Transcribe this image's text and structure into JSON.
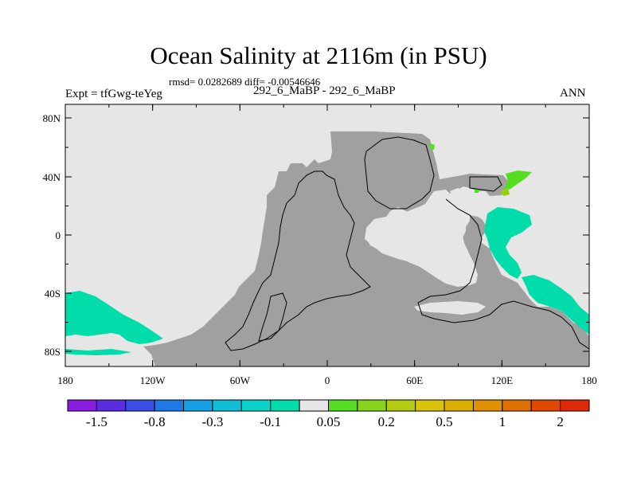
{
  "title": "Ocean Salinity at 2116m (in PSU)",
  "stats": "rmsd= 0.0282689 diff= -0.00546646",
  "expt_label": "Expt = tfGwg-teYeg",
  "runs_label": "292_6_MaBP - 292_6_MaBP",
  "period_label": "ANN",
  "colors": {
    "land": "#a0a0a0",
    "near_zero": "#e6e6e6",
    "teal": "#00dcaa",
    "green": "#55dd22",
    "yellowgreen": "#99cc11",
    "coast": "#000000"
  },
  "map": {
    "lon_ticks": [
      "180",
      "120W",
      "60W",
      "0",
      "60E",
      "120E",
      "180"
    ],
    "lat_ticks": [
      "80N",
      "40N",
      "0",
      "40S",
      "80S"
    ]
  },
  "colorbar": {
    "colors": [
      "#8a1ce0",
      "#5a2ee0",
      "#3b4ee6",
      "#1e78e6",
      "#14a0e6",
      "#10bed8",
      "#0ad2c8",
      "#00dcaa",
      "#e6e6e6",
      "#55dd22",
      "#88d41a",
      "#b4cc10",
      "#d8c40a",
      "#dcb000",
      "#e09000",
      "#e07000",
      "#e04a00",
      "#dc2a0a"
    ],
    "labels": [
      "-1.5",
      "-0.8",
      "-0.3",
      "-0.1",
      "0.05",
      "0.2",
      "0.5",
      "1",
      "2"
    ]
  }
}
